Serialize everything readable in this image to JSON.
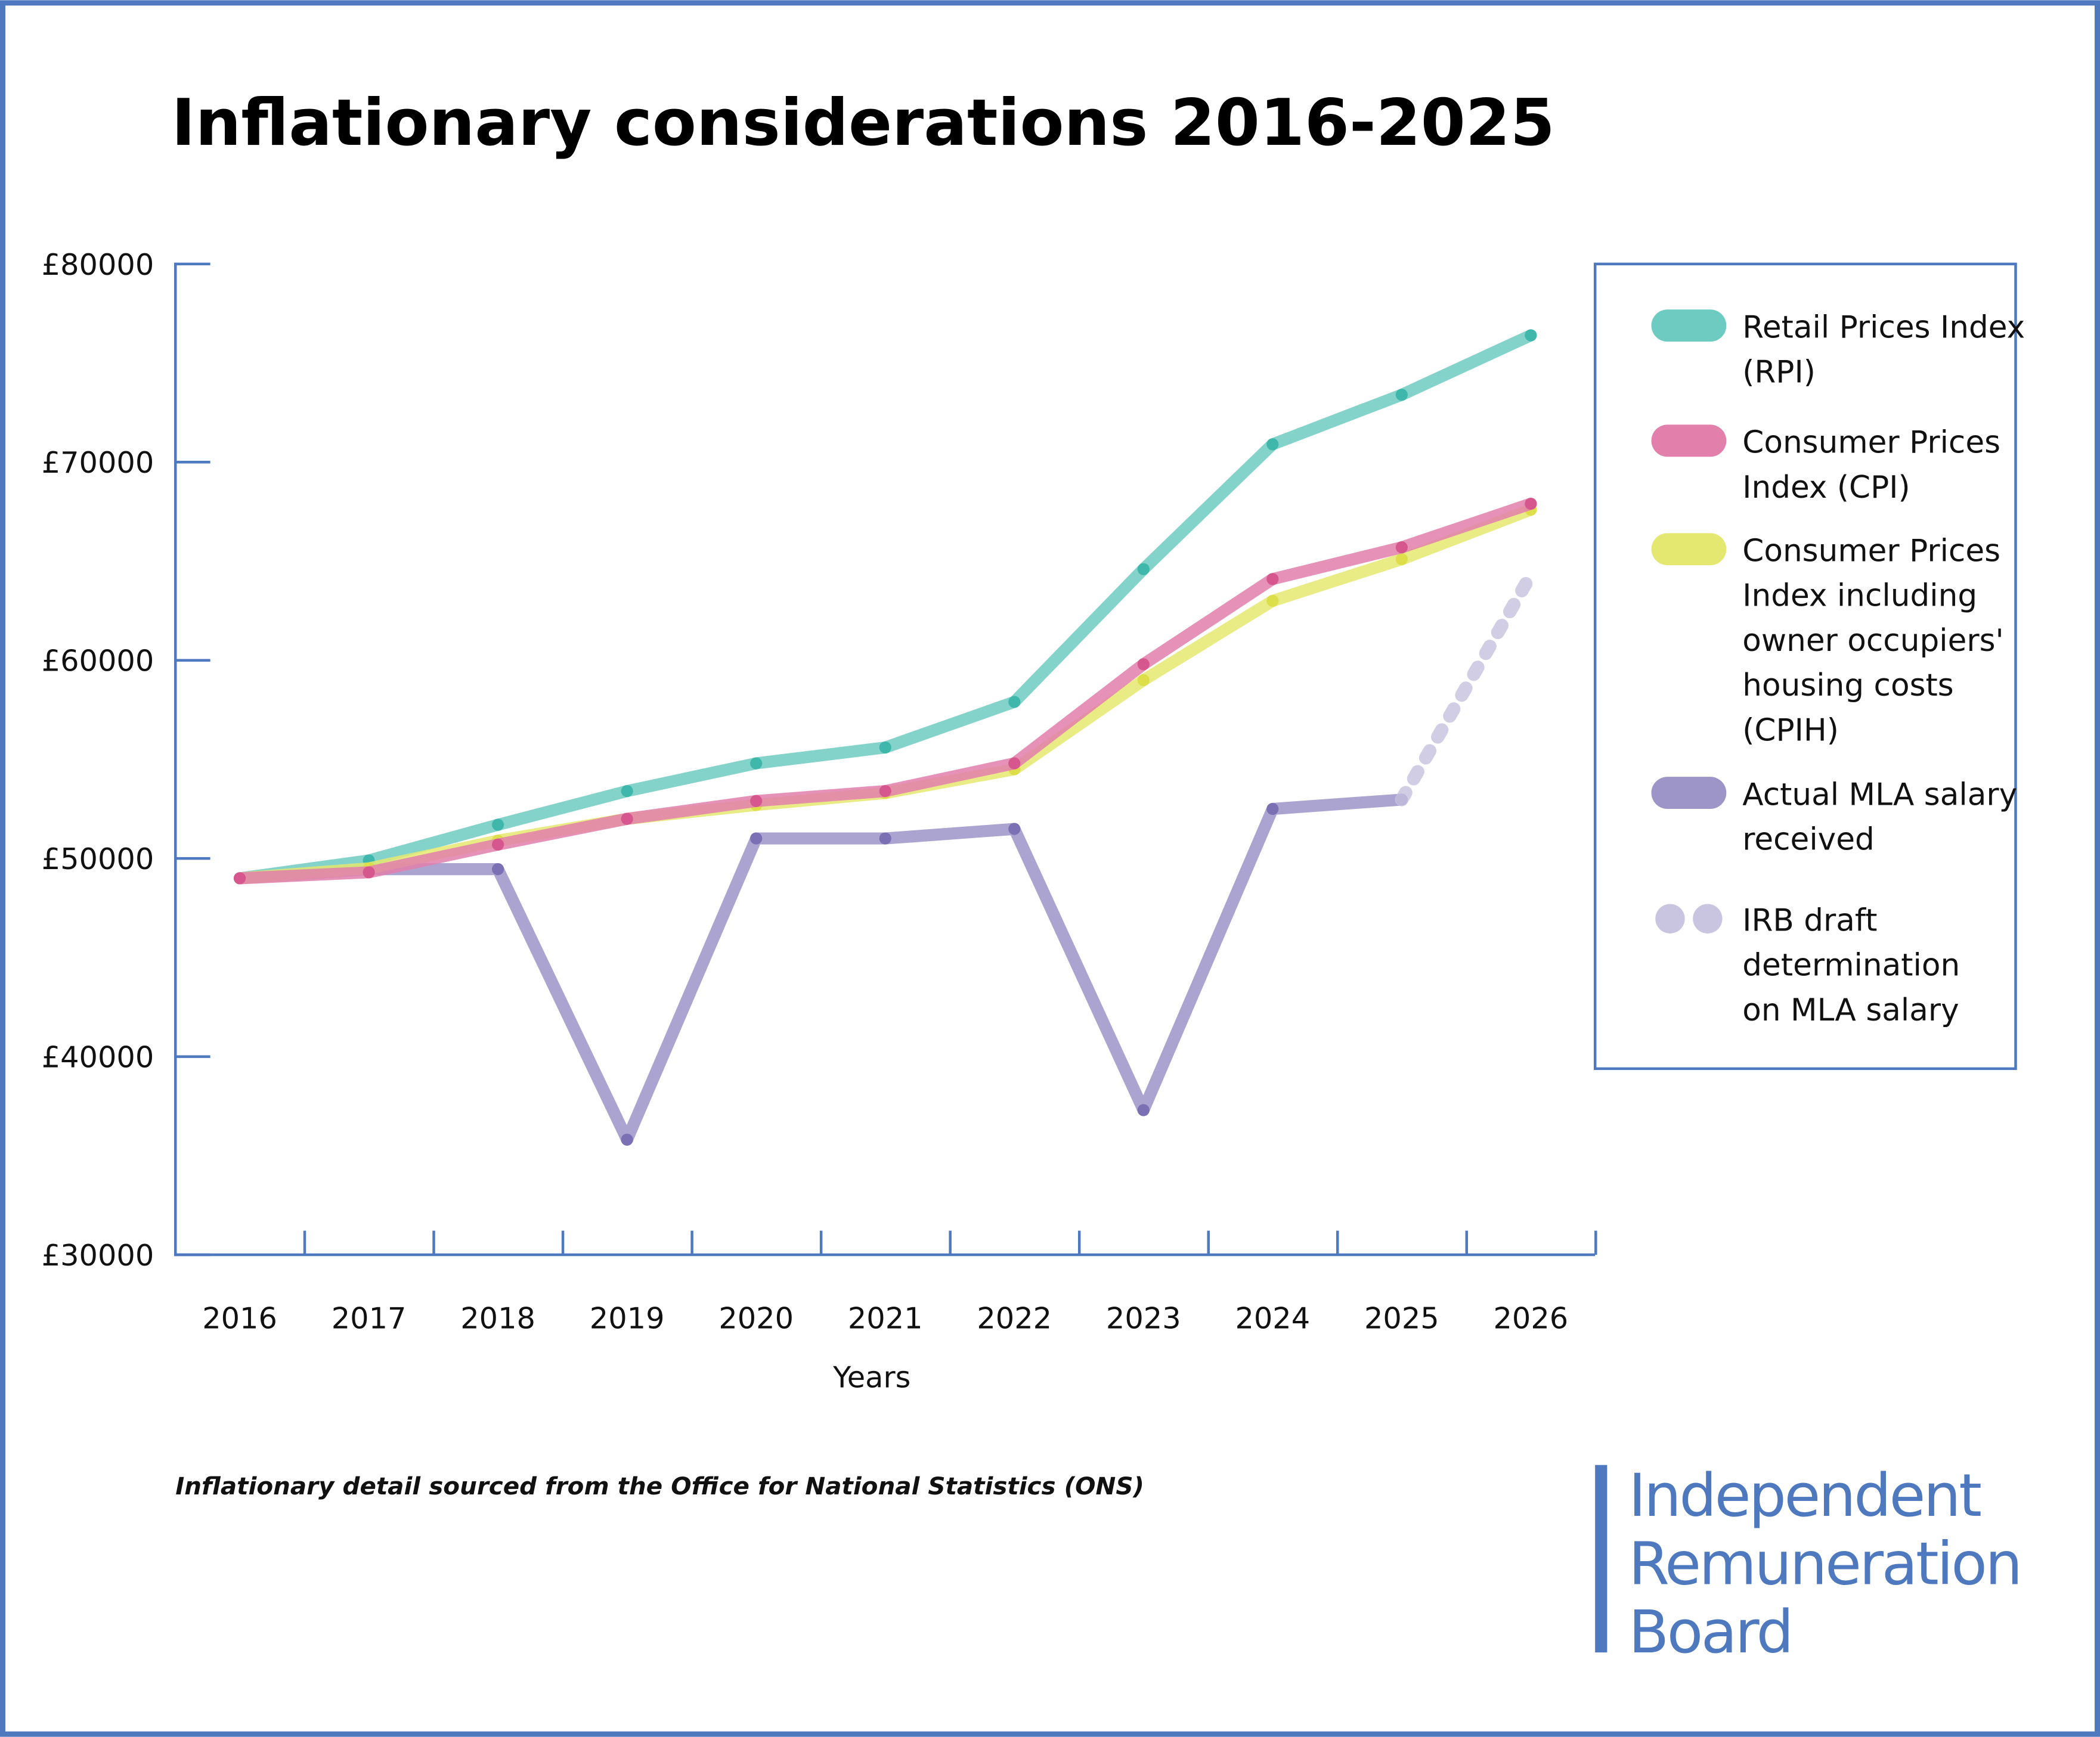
{
  "title": "Inflationary considerations 2016-2025",
  "footnote": "Inflationary detail sourced from the Office for National Statistics (ONS)",
  "logo": {
    "lines": [
      "Independent",
      "Remuneration",
      "Board"
    ],
    "color": "#4f79be"
  },
  "frame_color": "#4f79be",
  "chart_data": {
    "type": "line",
    "title": "Inflationary considerations 2016-2025",
    "xlabel": "Years",
    "ylabel": "",
    "x": [
      2016,
      2017,
      2018,
      2019,
      2020,
      2021,
      2022,
      2023,
      2024,
      2025,
      2026
    ],
    "x_tick_labels": [
      "2016",
      "2017",
      "2018",
      "2019",
      "2020",
      "2021",
      "2022",
      "2023",
      "2024",
      "2025",
      "2026"
    ],
    "ylim": [
      30000,
      80000
    ],
    "y_tick_labels": [
      "£30000",
      "£40000",
      "£50000",
      "£60000",
      "£70000",
      "£80000"
    ],
    "y_ticks": [
      30000,
      40000,
      50000,
      60000,
      70000,
      80000
    ],
    "grid": false,
    "legend_position": "right",
    "series": [
      {
        "name": "Retail Prices Index (RPI)",
        "legend_lines": [
          "Retail Prices Index",
          "(RPI)"
        ],
        "color": "#6ecbc2",
        "dot_color": "#3fb8ab",
        "dashed": false,
        "x": [
          2016,
          2017,
          2018,
          2019,
          2020,
          2021,
          2022,
          2023,
          2024,
          2025,
          2026
        ],
        "values": [
          49000,
          49900,
          51700,
          53400,
          54800,
          55600,
          57900,
          64600,
          70900,
          73400,
          76400
        ]
      },
      {
        "name": "Consumer Prices Index (CPI)",
        "legend_lines": [
          "Consumer Prices",
          "Index (CPI)"
        ],
        "color": "#e27fab",
        "dot_color": "#d6578e",
        "dashed": false,
        "x": [
          2016,
          2017,
          2018,
          2019,
          2020,
          2021,
          2022,
          2023,
          2024,
          2025,
          2026
        ],
        "values": [
          49000,
          49300,
          50700,
          52000,
          52900,
          53400,
          54800,
          59800,
          64100,
          65700,
          67900
        ]
      },
      {
        "name": "Consumer Prices Index including owner occupiers' housing costs (CPIH)",
        "legend_lines": [
          "Consumer Prices",
          "Index including",
          "owner occupiers'",
          "housing costs",
          "(CPIH)"
        ],
        "color": "#e5e870",
        "dot_color": "#dcdf4a",
        "dashed": false,
        "x": [
          2016,
          2017,
          2018,
          2019,
          2020,
          2021,
          2022,
          2023,
          2024,
          2025,
          2026
        ],
        "values": [
          49000,
          49500,
          50900,
          52000,
          52700,
          53300,
          54500,
          59000,
          63000,
          65100,
          67600
        ]
      },
      {
        "name": "Actual MLA salary received",
        "legend_lines": [
          "Actual MLA salary",
          "received"
        ],
        "color": "#9d94c8",
        "dot_color": "#7a70b3",
        "dashed": false,
        "x": [
          2016,
          2017,
          2018,
          2019,
          2020,
          2021,
          2022,
          2023,
          2024,
          2025
        ],
        "values": [
          49000,
          49460,
          49460,
          35810,
          51010,
          51010,
          51490,
          37300,
          52500,
          52970
        ]
      },
      {
        "name": "IRB draft determination on MLA salary",
        "legend_lines": [
          "IRB draft",
          "determination",
          "on MLA salary"
        ],
        "color": "#c9c4e0",
        "dot_color": "#c9c4e0",
        "dashed": true,
        "x": [
          2025,
          2026
        ],
        "values": [
          52970,
          64300
        ]
      }
    ]
  }
}
